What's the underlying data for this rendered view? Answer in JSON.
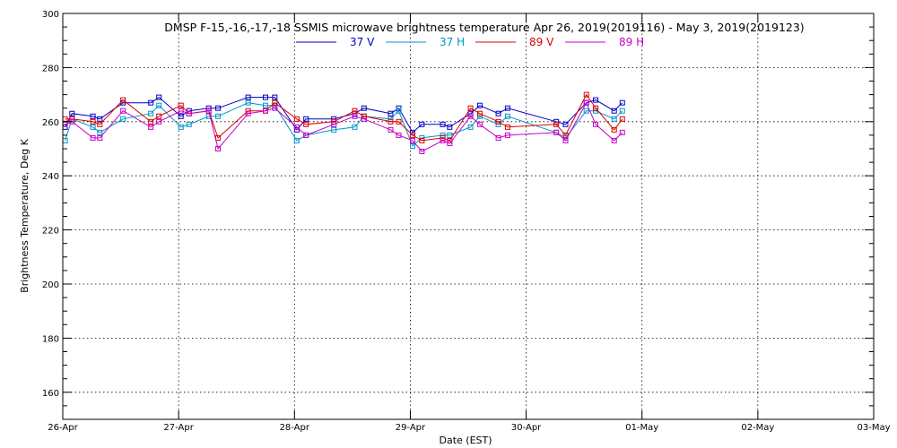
{
  "chart_data": {
    "type": "line",
    "title": "DMSP F-15,-16,-17,-18 SSMIS microwave brightness temperature Apr 26, 2019(2019116) - May  3, 2019(2019123)",
    "xlabel": "Date (EST)",
    "ylabel": "Brightness Temperature, Deg K",
    "xlim": [
      0,
      7
    ],
    "ylim": [
      150,
      300
    ],
    "x_ticks": [
      {
        "value": 0,
        "label": "26-Apr"
      },
      {
        "value": 1,
        "label": "27-Apr"
      },
      {
        "value": 2,
        "label": "28-Apr"
      },
      {
        "value": 3,
        "label": "29-Apr"
      },
      {
        "value": 4,
        "label": "30-Apr"
      },
      {
        "value": 5,
        "label": "01-May"
      },
      {
        "value": 6,
        "label": "02-May"
      },
      {
        "value": 7,
        "label": "03-May"
      }
    ],
    "y_ticks": [
      160,
      180,
      200,
      220,
      240,
      260,
      280,
      300
    ],
    "grid": true,
    "legend_position": "top-center",
    "series": [
      {
        "name": "37 V",
        "color": "#0000c8",
        "points": [
          [
            0.02,
            258
          ],
          [
            0.08,
            263
          ],
          [
            0.26,
            262
          ],
          [
            0.32,
            261
          ],
          [
            0.52,
            267
          ],
          [
            0.76,
            267
          ],
          [
            0.83,
            269
          ],
          [
            1.02,
            262
          ],
          [
            1.09,
            264
          ],
          [
            1.26,
            265
          ],
          [
            1.34,
            265
          ],
          [
            1.6,
            269
          ],
          [
            1.75,
            269
          ],
          [
            1.83,
            269
          ],
          [
            2.02,
            257
          ],
          [
            2.1,
            261
          ],
          [
            2.34,
            261
          ],
          [
            2.52,
            263
          ],
          [
            2.6,
            265
          ],
          [
            2.83,
            263
          ],
          [
            2.9,
            265
          ],
          [
            3.02,
            256
          ],
          [
            3.1,
            259
          ],
          [
            3.28,
            259
          ],
          [
            3.34,
            258
          ],
          [
            3.52,
            263
          ],
          [
            3.6,
            266
          ],
          [
            3.76,
            263
          ],
          [
            3.84,
            265
          ],
          [
            4.26,
            260
          ],
          [
            4.34,
            259
          ],
          [
            4.52,
            267
          ],
          [
            4.6,
            268
          ],
          [
            4.76,
            264
          ],
          [
            4.83,
            267
          ]
        ]
      },
      {
        "name": "37 H",
        "color": "#0096c8",
        "points": [
          [
            0.02,
            253
          ],
          [
            0.08,
            261
          ],
          [
            0.26,
            258
          ],
          [
            0.32,
            256
          ],
          [
            0.52,
            261
          ],
          [
            0.76,
            263
          ],
          [
            0.83,
            266
          ],
          [
            1.02,
            258
          ],
          [
            1.09,
            259
          ],
          [
            1.26,
            262
          ],
          [
            1.34,
            262
          ],
          [
            1.6,
            267
          ],
          [
            1.75,
            266
          ],
          [
            1.83,
            266
          ],
          [
            2.02,
            253
          ],
          [
            2.1,
            255
          ],
          [
            2.34,
            257
          ],
          [
            2.52,
            258
          ],
          [
            2.6,
            262
          ],
          [
            2.83,
            261
          ],
          [
            2.9,
            264
          ],
          [
            3.02,
            251
          ],
          [
            3.1,
            254
          ],
          [
            3.28,
            255
          ],
          [
            3.34,
            255
          ],
          [
            3.52,
            258
          ],
          [
            3.6,
            262
          ],
          [
            3.76,
            259
          ],
          [
            3.84,
            262
          ],
          [
            4.26,
            256
          ],
          [
            4.34,
            254
          ],
          [
            4.52,
            264
          ],
          [
            4.6,
            264
          ],
          [
            4.76,
            261
          ],
          [
            4.83,
            264
          ]
        ]
      },
      {
        "name": "89 V",
        "color": "#dc0000",
        "points": [
          [
            0.02,
            261
          ],
          [
            0.08,
            261
          ],
          [
            0.26,
            260
          ],
          [
            0.32,
            259
          ],
          [
            0.52,
            268
          ],
          [
            0.76,
            260
          ],
          [
            0.83,
            262
          ],
          [
            1.02,
            266
          ],
          [
            1.09,
            263
          ],
          [
            1.26,
            264
          ],
          [
            1.34,
            254
          ],
          [
            1.6,
            264
          ],
          [
            1.75,
            264
          ],
          [
            1.83,
            267
          ],
          [
            2.02,
            261
          ],
          [
            2.1,
            259
          ],
          [
            2.34,
            260
          ],
          [
            2.52,
            264
          ],
          [
            2.6,
            262
          ],
          [
            2.83,
            260
          ],
          [
            2.9,
            260
          ],
          [
            3.02,
            255
          ],
          [
            3.1,
            253
          ],
          [
            3.28,
            254
          ],
          [
            3.34,
            253
          ],
          [
            3.52,
            265
          ],
          [
            3.6,
            263
          ],
          [
            3.76,
            260
          ],
          [
            3.84,
            258
          ],
          [
            4.26,
            259
          ],
          [
            4.34,
            255
          ],
          [
            4.52,
            270
          ],
          [
            4.6,
            265
          ],
          [
            4.76,
            257
          ],
          [
            4.83,
            261
          ]
        ]
      },
      {
        "name": "89 H",
        "color": "#c800c8",
        "points": [
          [
            0.02,
            259
          ],
          [
            0.08,
            260
          ],
          [
            0.26,
            254
          ],
          [
            0.32,
            254
          ],
          [
            0.52,
            264
          ],
          [
            0.76,
            258
          ],
          [
            0.83,
            260
          ],
          [
            1.02,
            264
          ],
          [
            1.09,
            263
          ],
          [
            1.26,
            264
          ],
          [
            1.34,
            250
          ],
          [
            1.6,
            263
          ],
          [
            1.75,
            264
          ],
          [
            1.83,
            265
          ],
          [
            2.02,
            258
          ],
          [
            2.1,
            255
          ],
          [
            2.34,
            259
          ],
          [
            2.52,
            262
          ],
          [
            2.6,
            261
          ],
          [
            2.83,
            257
          ],
          [
            2.9,
            255
          ],
          [
            3.02,
            253
          ],
          [
            3.1,
            249
          ],
          [
            3.28,
            253
          ],
          [
            3.34,
            252
          ],
          [
            3.52,
            262
          ],
          [
            3.6,
            259
          ],
          [
            3.76,
            254
          ],
          [
            3.84,
            255
          ],
          [
            4.26,
            256
          ],
          [
            4.34,
            253
          ],
          [
            4.52,
            267
          ],
          [
            4.6,
            259
          ],
          [
            4.76,
            253
          ],
          [
            4.83,
            256
          ]
        ]
      }
    ]
  }
}
